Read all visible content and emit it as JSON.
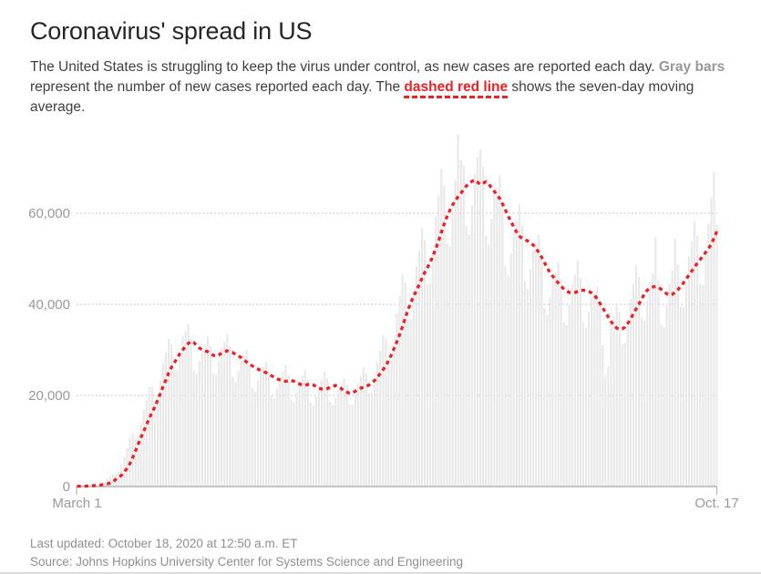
{
  "header": {
    "title": "Coronavirus' spread in US",
    "description_segments": [
      {
        "text": "The United States is struggling to keep the virus under control, as new cases are reported each day. ",
        "style": "normal"
      },
      {
        "text": "Gray bars",
        "style": "bold-gray"
      },
      {
        "text": " represent the number of new cases reported each day. The ",
        "style": "normal"
      },
      {
        "text": "dashed red line",
        "style": "bold-red-underline"
      },
      {
        "text": " shows the seven-day moving average.",
        "style": "normal"
      }
    ]
  },
  "footer": {
    "last_updated": "Last updated: October 18, 2020 at 12:50 a.m. ET",
    "source": "Source: Johns Hopkins University Center for Systems Science and Engineering"
  },
  "colors": {
    "red_line": "#ed2024",
    "bar_gray": "#e8e8e8",
    "axis_text": "#999999",
    "gridline": "#c8c8c8",
    "axis_line": "#b3b3b3",
    "bold_gray_text": "#979797",
    "title_text": "#262626",
    "body_text": "#404040",
    "footer_text": "#8f8f8f"
  },
  "chart_data": {
    "type": "bar",
    "title": "Coronavirus' spread in US",
    "xlabel": "",
    "ylabel": "",
    "x_ticks": [
      "March 1",
      "Oct. 17"
    ],
    "y_ticks": [
      0,
      20000,
      40000,
      60000
    ],
    "y_tick_labels": [
      "0",
      "20,000",
      "40,000",
      "60,000"
    ],
    "ylim": [
      0,
      78600
    ],
    "grid": "dotted horizontal gridlines at 20,000 / 40,000 / 60,000",
    "legend": "no on-chart legend; series described in intro text",
    "x_range_note": "231 daily values, March 1 2020 through October 17 2020",
    "values_unit": "new reported COVID-19 cases per day, stored in thousands",
    "series": [
      {
        "name": "New cases reported each day (gray bars)",
        "type": "bar",
        "values_thousands": [
          0.1,
          0.1,
          0.1,
          0.2,
          0.3,
          0.3,
          0.4,
          0.4,
          0.5,
          0.7,
          1.1,
          1.7,
          2.3,
          2.7,
          2.7,
          3.3,
          4.7,
          6.5,
          8.4,
          10.7,
          11.6,
          10.4,
          11.3,
          14.0,
          16.8,
          18.9,
          21.9,
          21.9,
          18.7,
          19.5,
          23.3,
          27.0,
          29.4,
          32.4,
          31.2,
          25.5,
          25.6,
          29.2,
          32.9,
          34.1,
          35.7,
          32.5,
          25.5,
          24.7,
          27.5,
          30.1,
          31.1,
          32.9,
          30.9,
          24.9,
          24.6,
          27.7,
          30.5,
          31.8,
          33.4,
          30.7,
          24.1,
          23.1,
          25.4,
          27.7,
          28.6,
          30.0,
          27.6,
          21.7,
          20.9,
          23.3,
          25.4,
          26.2,
          27.5,
          25.3,
          19.9,
          19.3,
          21.5,
          23.9,
          25.2,
          26.6,
          24.4,
          19.1,
          18.5,
          20.6,
          23.1,
          24.3,
          25.6,
          23.4,
          18.4,
          17.8,
          19.8,
          22.1,
          23.5,
          25.3,
          23.8,
          18.6,
          17.8,
          19.5,
          21.3,
          22.1,
          23.7,
          22.4,
          18.1,
          17.9,
          20.3,
          22.7,
          24.1,
          26.2,
          24.9,
          20.4,
          20.6,
          23.8,
          27.3,
          29.8,
          33.2,
          32.4,
          27.0,
          27.7,
          32.6,
          38.1,
          41.9,
          46.5,
          44.7,
          36.6,
          36.8,
          42.5,
          48.4,
          51.9,
          56.7,
          54.2,
          44.4,
          44.8,
          51.9,
          59.3,
          63.9,
          69.7,
          66.1,
          53.4,
          52.8,
          59.9,
          67.2,
          77.3,
          71.6,
          70.5,
          57.2,
          55.4,
          61.7,
          68.6,
          72.3,
          74.0,
          70.2,
          55.1,
          53.1,
          58.8,
          63.9,
          65.6,
          68.3,
          62.3,
          48.5,
          46.4,
          51.2,
          56.1,
          58.5,
          62.0,
          57.2,
          45.1,
          43.4,
          47.8,
          51.9,
          53.1,
          55.2,
          50.3,
          39.3,
          37.7,
          41.6,
          45.3,
          46.9,
          49.3,
          45.6,
          36.1,
          35.4,
          39.8,
          44.3,
          46.5,
          49.5,
          45.8,
          36.1,
          34.9,
          38.3,
          41.4,
          42.3,
          43.9,
          39.8,
          31.0,
          24.3,
          26.4,
          35.5,
          37.4,
          40.3,
          38.3,
          31.3,
          31.5,
          36.3,
          41.2,
          44.5,
          48.6,
          46.1,
          37.1,
          36.4,
          40.8,
          45.0,
          46.8,
          54.9,
          45.3,
          35.7,
          35.0,
          39.6,
          44.5,
          47.4,
          54.3,
          48.8,
          39.4,
          39.3,
          44.8,
          50.5,
          53.8,
          58.2,
          55.0,
          44.4,
          44.2,
          50.7,
          57.7,
          63.5,
          69.1,
          57.4
        ]
      },
      {
        "name": "Seven-day moving average (dashed red line)",
        "type": "line",
        "values_thousands": [
          0.07,
          0.08,
          0.09,
          0.1,
          0.12,
          0.15,
          0.2,
          0.25,
          0.3,
          0.4,
          0.5,
          0.6,
          0.8,
          1.1,
          1.6,
          2.0,
          2.5,
          3.2,
          4.0,
          5.0,
          6.3,
          7.8,
          9.3,
          10.8,
          12.2,
          13.6,
          15.0,
          16.3,
          17.5,
          19.0,
          20.5,
          22.0,
          23.5,
          25.0,
          26.2,
          27.2,
          28.2,
          29.2,
          30.0,
          30.8,
          31.4,
          31.9,
          31.6,
          31.0,
          30.4,
          30.0,
          29.8,
          29.6,
          29.2,
          28.8,
          28.6,
          28.9,
          29.3,
          29.6,
          29.8,
          29.6,
          29.4,
          29.0,
          28.7,
          28.3,
          27.8,
          27.3,
          26.9,
          26.5,
          26.1,
          25.8,
          25.5,
          25.2,
          25.0,
          24.7,
          24.3,
          23.9,
          23.6,
          23.4,
          23.2,
          23.1,
          23.2,
          23.3,
          23.1,
          22.8,
          22.5,
          22.3,
          22.2,
          22.4,
          22.5,
          22.3,
          21.9,
          21.6,
          21.4,
          21.3,
          21.5,
          21.8,
          22.0,
          22.2,
          21.9,
          21.5,
          21.0,
          20.7,
          20.5,
          20.6,
          20.9,
          21.3,
          21.6,
          21.8,
          22.0,
          22.3,
          22.8,
          23.3,
          24.0,
          24.8,
          25.6,
          26.5,
          27.6,
          28.9,
          30.3,
          31.8,
          33.4,
          35.1,
          37.0,
          38.8,
          40.4,
          41.8,
          43.0,
          44.3,
          45.7,
          47.0,
          48.1,
          49.3,
          50.7,
          52.2,
          54.0,
          55.8,
          57.6,
          59.2,
          60.6,
          61.8,
          62.8,
          63.6,
          64.4,
          65.2,
          66.0,
          66.6,
          67.0,
          67.3,
          66.8,
          66.3,
          66.6,
          66.9,
          66.4,
          65.6,
          64.8,
          64.0,
          63.2,
          62.0,
          60.7,
          59.4,
          58.2,
          57.0,
          55.9,
          55.0,
          54.5,
          54.2,
          53.9,
          53.5,
          53.0,
          52.3,
          51.4,
          50.4,
          49.2,
          48.0,
          47.0,
          46.2,
          45.4,
          44.7,
          44.0,
          43.4,
          42.9,
          42.6,
          42.5,
          42.6,
          42.8,
          43.0,
          43.1,
          43.0,
          42.8,
          42.5,
          42.0,
          41.2,
          40.2,
          39.2,
          38.2,
          37.2,
          36.2,
          35.4,
          34.8,
          34.5,
          34.6,
          35.0,
          35.8,
          36.8,
          37.9,
          39.0,
          40.0,
          41.2,
          42.3,
          43.1,
          43.6,
          43.8,
          43.9,
          43.7,
          43.3,
          42.8,
          42.3,
          42.0,
          42.2,
          42.6,
          43.2,
          43.9,
          44.7,
          45.6,
          46.4,
          47.3,
          48.2,
          49.0,
          49.8,
          50.6,
          51.4,
          52.2,
          53.2,
          54.5,
          56.0
        ]
      }
    ]
  }
}
